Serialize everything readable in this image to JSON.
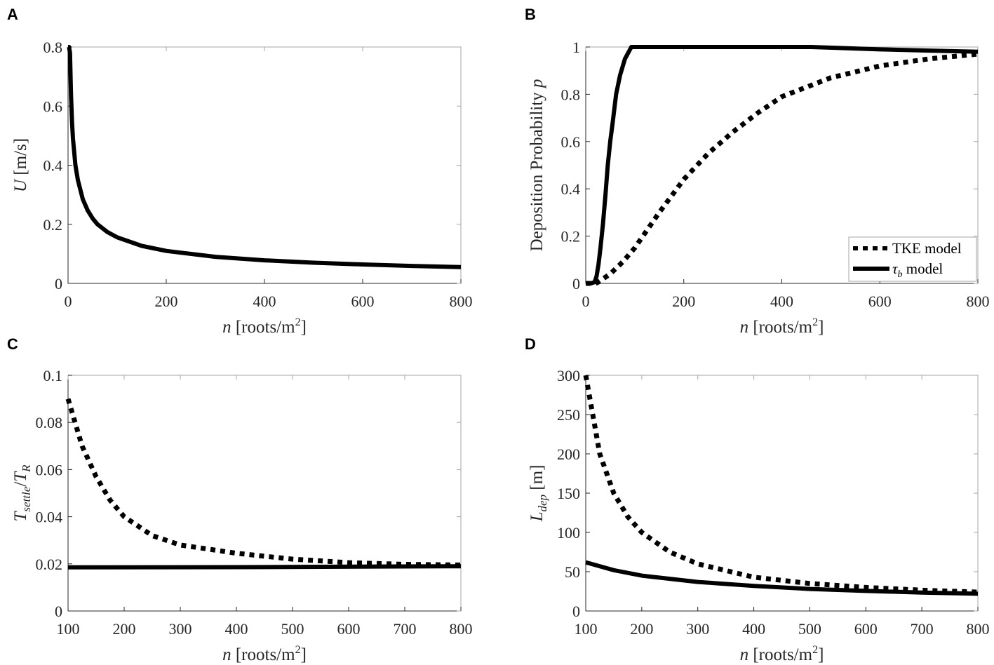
{
  "colors": {
    "line": "#000000",
    "axes": "#262626",
    "frame": "#a6a6a6"
  },
  "chart_data": [
    {
      "panel": "A",
      "type": "line",
      "xlabel": {
        "var": "n",
        "pre": " [roots/m",
        "sup": "2",
        "post": "]"
      },
      "ylabel": {
        "var": "U",
        "sub": "",
        "post": " [m/s]"
      },
      "xlim": [
        0,
        800
      ],
      "ylim": [
        0,
        0.8
      ],
      "xticks": [
        0,
        200,
        400,
        600,
        800
      ],
      "xtick_labels": [
        "0",
        "200",
        "400",
        "600",
        "800"
      ],
      "yticks": [
        0,
        0.2,
        0.4,
        0.6,
        0.8
      ],
      "ytick_labels": [
        "0",
        "0.2",
        "0.4",
        "0.6",
        "0.8"
      ],
      "grid": false,
      "series": [
        {
          "style": "solid",
          "x": [
            0,
            2,
            4,
            6,
            8,
            10,
            15,
            20,
            30,
            40,
            50,
            60,
            80,
            100,
            150,
            200,
            300,
            400,
            500,
            600,
            700,
            800
          ],
          "y": [
            0.8,
            0.8,
            0.78,
            0.64,
            0.55,
            0.49,
            0.4,
            0.35,
            0.285,
            0.247,
            0.22,
            0.2,
            0.174,
            0.156,
            0.127,
            0.11,
            0.09,
            0.078,
            0.07,
            0.064,
            0.059,
            0.055
          ]
        }
      ]
    },
    {
      "panel": "B",
      "type": "line",
      "xlabel": {
        "var": "n",
        "pre": " [roots/m",
        "sup": "2",
        "post": "]"
      },
      "ylabel": {
        "pre": "Deposition Probability ",
        "var": "p"
      },
      "xlim": [
        0,
        800
      ],
      "ylim": [
        0,
        1
      ],
      "xticks": [
        0,
        200,
        400,
        600,
        800
      ],
      "xtick_labels": [
        "0",
        "200",
        "400",
        "600",
        "800"
      ],
      "yticks": [
        0,
        0.2,
        0.4,
        0.6,
        0.8,
        1
      ],
      "ytick_labels": [
        "0",
        "0.2",
        "0.4",
        "0.6",
        "0.8",
        "1"
      ],
      "grid": false,
      "legend": {
        "placement": "bottom-right",
        "entries": [
          {
            "style": "dotted",
            "label": "TKE model"
          },
          {
            "style": "solid",
            "var": "τ",
            "sub": "b",
            "label": " model"
          }
        ]
      },
      "series": [
        {
          "name": "TKE model",
          "style": "dotted",
          "x": [
            0,
            20,
            25,
            50,
            75,
            100,
            150,
            200,
            250,
            300,
            350,
            400,
            500,
            600,
            700,
            800
          ],
          "y": [
            0,
            0,
            0.005,
            0.04,
            0.09,
            0.15,
            0.3,
            0.44,
            0.55,
            0.64,
            0.72,
            0.79,
            0.87,
            0.92,
            0.95,
            0.97
          ]
        },
        {
          "name": "τb model",
          "style": "solid",
          "x": [
            0,
            10,
            18,
            22,
            26,
            30,
            35,
            40,
            45,
            50,
            55,
            62,
            70,
            80,
            93,
            460,
            600,
            700,
            800
          ],
          "y": [
            0,
            0,
            0.005,
            0.03,
            0.08,
            0.15,
            0.25,
            0.37,
            0.5,
            0.6,
            0.68,
            0.8,
            0.88,
            0.95,
            1,
            1,
            0.99,
            0.985,
            0.98
          ]
        }
      ]
    },
    {
      "panel": "C",
      "type": "line",
      "xlabel": {
        "var": "n",
        "pre": " [roots/m",
        "sup": "2",
        "post": "]"
      },
      "ylabel": {
        "var": "T",
        "sub": "settle",
        "mid": "/",
        "var2": "T",
        "sub2": "R"
      },
      "xlim": [
        100,
        800
      ],
      "ylim": [
        0,
        0.1
      ],
      "xticks": [
        100,
        200,
        300,
        400,
        500,
        600,
        700,
        800
      ],
      "xtick_labels": [
        "100",
        "200",
        "300",
        "400",
        "500",
        "600",
        "700",
        "800"
      ],
      "yticks": [
        0,
        0.02,
        0.04,
        0.06,
        0.08,
        0.1
      ],
      "ytick_labels": [
        "0",
        "0.02",
        "0.04",
        "0.06",
        "0.08",
        "0.1"
      ],
      "grid": false,
      "series": [
        {
          "style": "dotted",
          "x": [
            100,
            125,
            150,
            175,
            200,
            250,
            300,
            400,
            500,
            600,
            700,
            800
          ],
          "y": [
            0.09,
            0.07,
            0.057,
            0.047,
            0.04,
            0.032,
            0.028,
            0.0245,
            0.022,
            0.0205,
            0.0198,
            0.0195
          ]
        },
        {
          "style": "solid",
          "x": [
            100,
            400,
            800
          ],
          "y": [
            0.0185,
            0.0186,
            0.019
          ]
        }
      ]
    },
    {
      "panel": "D",
      "type": "line",
      "xlabel": {
        "var": "n",
        "pre": " [roots/m",
        "sup": "2",
        "post": "]"
      },
      "ylabel": {
        "var": "L",
        "sub": "dep",
        "post": " [m]"
      },
      "xlim": [
        100,
        800
      ],
      "ylim": [
        0,
        300
      ],
      "xticks": [
        100,
        200,
        300,
        400,
        500,
        600,
        700,
        800
      ],
      "xtick_labels": [
        "100",
        "200",
        "300",
        "400",
        "500",
        "600",
        "700",
        "800"
      ],
      "yticks": [
        0,
        50,
        100,
        150,
        200,
        250,
        300
      ],
      "ytick_labels": [
        "0",
        "50",
        "100",
        "150",
        "200",
        "250",
        "300"
      ],
      "grid": false,
      "series": [
        {
          "style": "dotted",
          "x": [
            100,
            125,
            150,
            175,
            200,
            250,
            300,
            400,
            500,
            600,
            700,
            800
          ],
          "y": [
            300,
            200,
            150,
            120,
            100,
            75,
            60,
            43,
            35,
            30,
            26.5,
            24
          ]
        },
        {
          "style": "solid",
          "x": [
            100,
            150,
            200,
            300,
            400,
            500,
            600,
            700,
            800
          ],
          "y": [
            62,
            52,
            45,
            37,
            32,
            28,
            25.5,
            23.5,
            22
          ]
        }
      ]
    }
  ]
}
